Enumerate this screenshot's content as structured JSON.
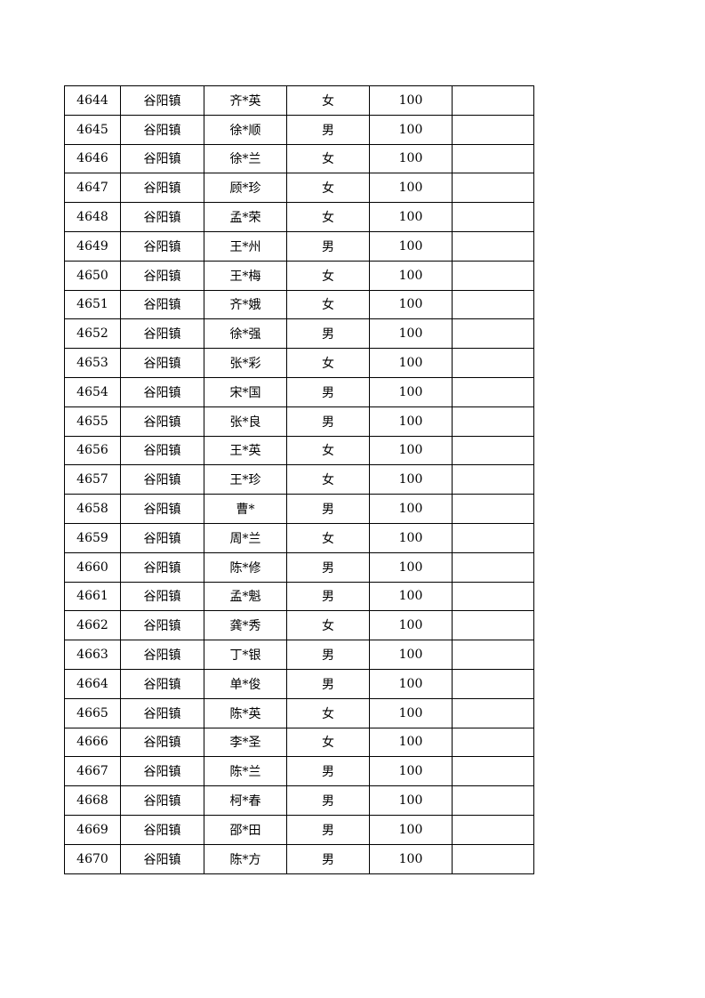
{
  "rows": [
    {
      "no": "4644",
      "town": "谷阳镇",
      "name": "齐*英",
      "gender": "女",
      "amount": "100",
      "note": ""
    },
    {
      "no": "4645",
      "town": "谷阳镇",
      "name": "徐*顺",
      "gender": "男",
      "amount": "100",
      "note": ""
    },
    {
      "no": "4646",
      "town": "谷阳镇",
      "name": "徐*兰",
      "gender": "女",
      "amount": "100",
      "note": ""
    },
    {
      "no": "4647",
      "town": "谷阳镇",
      "name": "顾*珍",
      "gender": "女",
      "amount": "100",
      "note": ""
    },
    {
      "no": "4648",
      "town": "谷阳镇",
      "name": "孟*荣",
      "gender": "女",
      "amount": "100",
      "note": ""
    },
    {
      "no": "4649",
      "town": "谷阳镇",
      "name": "王*州",
      "gender": "男",
      "amount": "100",
      "note": ""
    },
    {
      "no": "4650",
      "town": "谷阳镇",
      "name": "王*梅",
      "gender": "女",
      "amount": "100",
      "note": ""
    },
    {
      "no": "4651",
      "town": "谷阳镇",
      "name": "齐*娥",
      "gender": "女",
      "amount": "100",
      "note": ""
    },
    {
      "no": "4652",
      "town": "谷阳镇",
      "name": "徐*强",
      "gender": "男",
      "amount": "100",
      "note": ""
    },
    {
      "no": "4653",
      "town": "谷阳镇",
      "name": "张*彩",
      "gender": "女",
      "amount": "100",
      "note": ""
    },
    {
      "no": "4654",
      "town": "谷阳镇",
      "name": "宋*国",
      "gender": "男",
      "amount": "100",
      "note": ""
    },
    {
      "no": "4655",
      "town": "谷阳镇",
      "name": "张*良",
      "gender": "男",
      "amount": "100",
      "note": ""
    },
    {
      "no": "4656",
      "town": "谷阳镇",
      "name": "王*英",
      "gender": "女",
      "amount": "100",
      "note": ""
    },
    {
      "no": "4657",
      "town": "谷阳镇",
      "name": "王*珍",
      "gender": "女",
      "amount": "100",
      "note": ""
    },
    {
      "no": "4658",
      "town": "谷阳镇",
      "name": "曹*",
      "gender": "男",
      "amount": "100",
      "note": ""
    },
    {
      "no": "4659",
      "town": "谷阳镇",
      "name": "周*兰",
      "gender": "女",
      "amount": "100",
      "note": ""
    },
    {
      "no": "4660",
      "town": "谷阳镇",
      "name": "陈*修",
      "gender": "男",
      "amount": "100",
      "note": ""
    },
    {
      "no": "4661",
      "town": "谷阳镇",
      "name": "孟*魁",
      "gender": "男",
      "amount": "100",
      "note": ""
    },
    {
      "no": "4662",
      "town": "谷阳镇",
      "name": "龚*秀",
      "gender": "女",
      "amount": "100",
      "note": ""
    },
    {
      "no": "4663",
      "town": "谷阳镇",
      "name": "丁*银",
      "gender": "男",
      "amount": "100",
      "note": ""
    },
    {
      "no": "4664",
      "town": "谷阳镇",
      "name": "单*俊",
      "gender": "男",
      "amount": "100",
      "note": ""
    },
    {
      "no": "4665",
      "town": "谷阳镇",
      "name": "陈*英",
      "gender": "女",
      "amount": "100",
      "note": ""
    },
    {
      "no": "4666",
      "town": "谷阳镇",
      "name": "李*圣",
      "gender": "女",
      "amount": "100",
      "note": ""
    },
    {
      "no": "4667",
      "town": "谷阳镇",
      "name": "陈*兰",
      "gender": "男",
      "amount": "100",
      "note": ""
    },
    {
      "no": "4668",
      "town": "谷阳镇",
      "name": "柯*春",
      "gender": "男",
      "amount": "100",
      "note": ""
    },
    {
      "no": "4669",
      "town": "谷阳镇",
      "name": "邵*田",
      "gender": "男",
      "amount": "100",
      "note": ""
    },
    {
      "no": "4670",
      "town": "谷阳镇",
      "name": "陈*方",
      "gender": "男",
      "amount": "100",
      "note": ""
    }
  ]
}
